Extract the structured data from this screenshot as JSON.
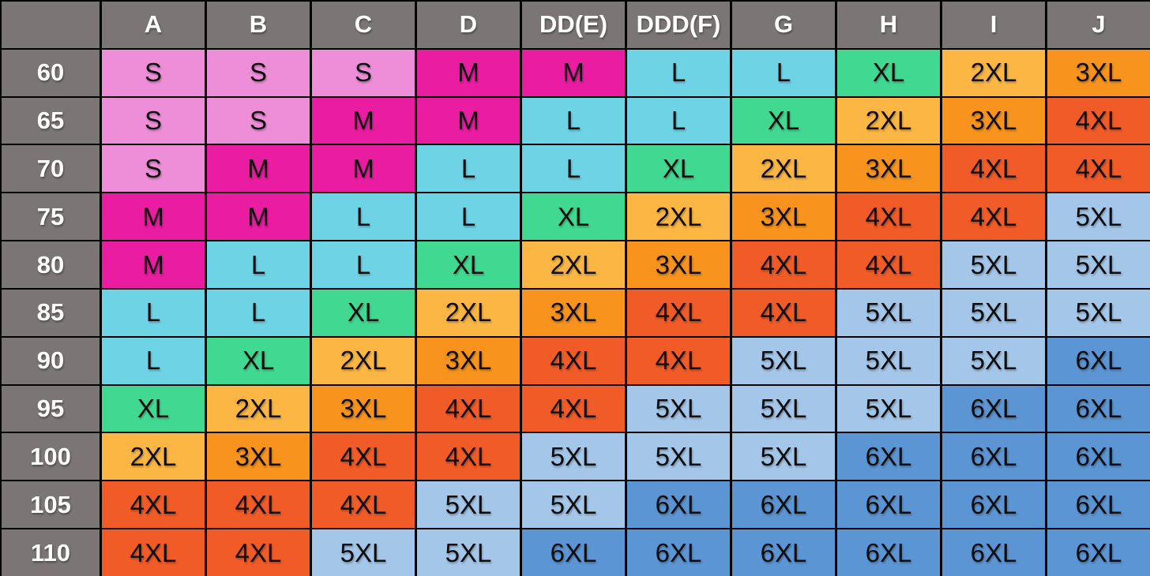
{
  "chart_data": {
    "type": "table",
    "column_headers": [
      "A",
      "B",
      "C",
      "D",
      "DD(E)",
      "DDD(F)",
      "G",
      "H",
      "I",
      "J"
    ],
    "row_headers": [
      "60",
      "65",
      "70",
      "75",
      "80",
      "85",
      "90",
      "95",
      "100",
      "105",
      "110"
    ],
    "corner_label": "",
    "rows": [
      [
        "S",
        "S",
        "S",
        "M",
        "M",
        "L",
        "L",
        "XL",
        "2XL",
        "3XL"
      ],
      [
        "S",
        "S",
        "M",
        "M",
        "L",
        "L",
        "XL",
        "2XL",
        "3XL",
        "4XL"
      ],
      [
        "S",
        "M",
        "M",
        "L",
        "L",
        "XL",
        "2XL",
        "3XL",
        "4XL",
        "4XL"
      ],
      [
        "M",
        "M",
        "L",
        "L",
        "XL",
        "2XL",
        "3XL",
        "4XL",
        "4XL",
        "5XL"
      ],
      [
        "M",
        "L",
        "L",
        "XL",
        "2XL",
        "3XL",
        "4XL",
        "4XL",
        "5XL",
        "5XL"
      ],
      [
        "L",
        "L",
        "XL",
        "2XL",
        "3XL",
        "4XL",
        "4XL",
        "5XL",
        "5XL",
        "5XL"
      ],
      [
        "L",
        "XL",
        "2XL",
        "3XL",
        "4XL",
        "4XL",
        "5XL",
        "5XL",
        "5XL",
        "6XL"
      ],
      [
        "XL",
        "2XL",
        "3XL",
        "4XL",
        "4XL",
        "5XL",
        "5XL",
        "5XL",
        "6XL",
        "6XL"
      ],
      [
        "2XL",
        "3XL",
        "4XL",
        "4XL",
        "5XL",
        "5XL",
        "5XL",
        "6XL",
        "6XL",
        "6XL"
      ],
      [
        "4XL",
        "4XL",
        "4XL",
        "5XL",
        "5XL",
        "6XL",
        "6XL",
        "6XL",
        "6XL",
        "6XL"
      ],
      [
        "4XL",
        "4XL",
        "5XL",
        "5XL",
        "6XL",
        "6XL",
        "6XL",
        "6XL",
        "6XL",
        "6XL"
      ]
    ],
    "size_colors": {
      "S": "#ee8ed9",
      "M": "#ea1ca1",
      "L": "#6fd3e6",
      "XL": "#41d992",
      "2XL": "#fcb643",
      "3XL": "#f8941d",
      "4XL": "#f15b28",
      "5XL": "#a4c6e8",
      "6XL": "#5c95d3"
    },
    "theme": {
      "header_bg": "#7b7575",
      "header_text": "#ffffff",
      "cell_text": "#0d0d0d",
      "grid_line": "#000000"
    },
    "layout": {
      "grid": "on",
      "legend": "none"
    }
  }
}
